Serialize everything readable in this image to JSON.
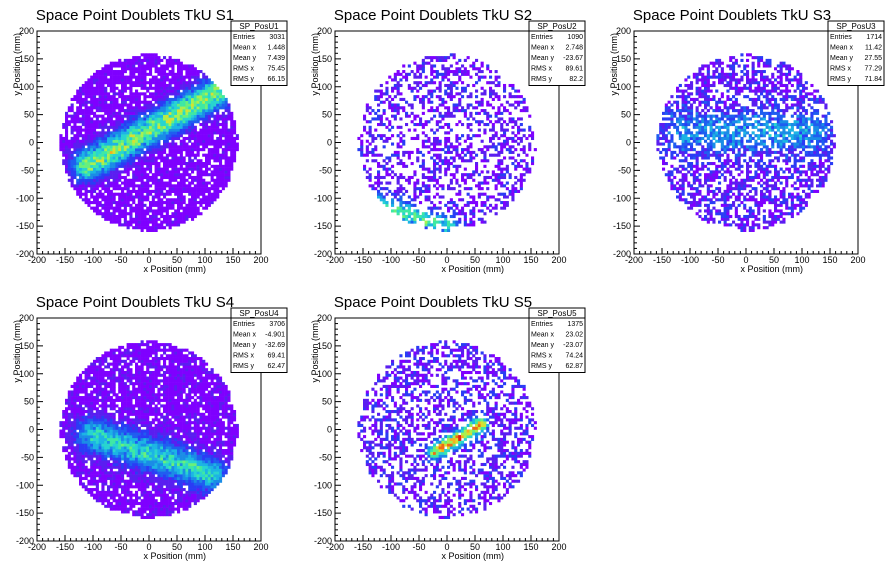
{
  "chart_data": [
    {
      "type": "heatmap",
      "title": "Space Point Doublets TkU S1",
      "xlabel": "x Position (mm)",
      "ylabel": "y Position (mm)",
      "xlim": [
        -200,
        200
      ],
      "ylim": [
        -200,
        200
      ],
      "xticks": [
        -200,
        -150,
        -100,
        -50,
        0,
        50,
        100,
        150,
        200
      ],
      "yticks": [
        -200,
        -150,
        -100,
        -50,
        0,
        50,
        100,
        150,
        200
      ],
      "stats": {
        "name": "SP_PosU1",
        "rows": [
          [
            "Entries",
            "3031"
          ],
          [
            "Mean x",
            "1.448"
          ],
          [
            "Mean y",
            "7.439"
          ],
          [
            "RMS x",
            "75.45"
          ],
          [
            "RMS y",
            "66.15"
          ]
        ]
      },
      "pattern": {
        "density": 0.82,
        "base": 0.08,
        "band": {
          "x1": -110,
          "y1": -40,
          "x2": 120,
          "y2": 90,
          "width": 18,
          "peak": 0.75
        }
      }
    },
    {
      "type": "heatmap",
      "title": "Space Point Doublets TkU S2",
      "xlabel": "x Position (mm)",
      "ylabel": "y Position (mm)",
      "xlim": [
        -200,
        200
      ],
      "ylim": [
        -200,
        200
      ],
      "xticks": [
        -200,
        -150,
        -100,
        -50,
        0,
        50,
        100,
        150,
        200
      ],
      "yticks": [
        -200,
        -150,
        -100,
        -50,
        0,
        50,
        100,
        150,
        200
      ],
      "stats": {
        "name": "SP_PosU2",
        "rows": [
          [
            "Entries",
            "1090"
          ],
          [
            "Mean x",
            "2.748"
          ],
          [
            "Mean y",
            "-23.67"
          ],
          [
            "RMS x",
            "89.61"
          ],
          [
            "RMS y",
            "82.2"
          ]
        ]
      },
      "pattern": {
        "density": 0.38,
        "base": 0.18,
        "band": {
          "x1": -140,
          "y1": -105,
          "x2": 0,
          "y2": -150,
          "width": 12,
          "peak": 0.55
        }
      }
    },
    {
      "type": "heatmap",
      "title": "Space Point Doublets TkU S3",
      "xlabel": "x Position (mm)",
      "ylabel": "y Position (mm)",
      "xlim": [
        -200,
        200
      ],
      "ylim": [
        -200,
        200
      ],
      "xticks": [
        -200,
        -150,
        -100,
        -50,
        0,
        50,
        100,
        150,
        200
      ],
      "yticks": [
        -200,
        -150,
        -100,
        -50,
        0,
        50,
        100,
        150,
        200
      ],
      "stats": {
        "name": "SP_PosU3",
        "rows": [
          [
            "Entries",
            "1714"
          ],
          [
            "Mean x",
            "11.42"
          ],
          [
            "Mean y",
            "27.55"
          ],
          [
            "RMS x",
            "77.29"
          ],
          [
            "RMS y",
            "71.84"
          ]
        ]
      },
      "pattern": {
        "density": 0.55,
        "base": 0.2,
        "band": {
          "x1": -110,
          "y1": 20,
          "x2": 120,
          "y2": 20,
          "width": 25,
          "peak": 0.3
        }
      }
    },
    {
      "type": "heatmap",
      "title": "Space Point Doublets TkU S4",
      "xlabel": "x Position (mm)",
      "ylabel": "y Position (mm)",
      "xlim": [
        -200,
        200
      ],
      "ylim": [
        -200,
        200
      ],
      "xticks": [
        -200,
        -150,
        -100,
        -50,
        0,
        50,
        100,
        150,
        200
      ],
      "yticks": [
        -200,
        -150,
        -100,
        -50,
        0,
        50,
        100,
        150,
        200
      ],
      "stats": {
        "name": "SP_PosU4",
        "rows": [
          [
            "Entries",
            "3706"
          ],
          [
            "Mean x",
            "-4.901"
          ],
          [
            "Mean y",
            "-32.69"
          ],
          [
            "RMS x",
            "69.41"
          ],
          [
            "RMS y",
            "62.47"
          ]
        ]
      },
      "pattern": {
        "density": 0.85,
        "base": 0.09,
        "band": {
          "x1": -100,
          "y1": -10,
          "x2": 110,
          "y2": -80,
          "width": 20,
          "peak": 0.55
        }
      }
    },
    {
      "type": "heatmap",
      "title": "Space Point Doublets TkU S5",
      "xlabel": "x Position (mm)",
      "ylabel": "y Position (mm)",
      "xlim": [
        -200,
        200
      ],
      "ylim": [
        -200,
        200
      ],
      "xticks": [
        -200,
        -150,
        -100,
        -50,
        0,
        50,
        100,
        150,
        200
      ],
      "yticks": [
        -200,
        -150,
        -100,
        -50,
        0,
        50,
        100,
        150,
        200
      ],
      "stats": {
        "name": "SP_PosU5",
        "rows": [
          [
            "Entries",
            "1375"
          ],
          [
            "Mean x",
            "23.02"
          ],
          [
            "Mean y",
            "-23.07"
          ],
          [
            "RMS x",
            "74.24"
          ],
          [
            "RMS y",
            "62.87"
          ]
        ]
      },
      "pattern": {
        "density": 0.45,
        "base": 0.2,
        "band": {
          "x1": -20,
          "y1": -40,
          "x2": 60,
          "y2": 10,
          "width": 9,
          "peak": 0.9
        }
      }
    }
  ],
  "colors": {
    "palette": [
      "#7f00ff",
      "#5a1ef0",
      "#2a3cf5",
      "#1f5ef0",
      "#1a8ce6",
      "#1cb4e4",
      "#28d4d0",
      "#3ee8a4",
      "#6af07a",
      "#a8f050",
      "#d8e030",
      "#f5b01e",
      "#f06a14",
      "#e02010"
    ],
    "axis": "#000000",
    "background": "#ffffff"
  }
}
